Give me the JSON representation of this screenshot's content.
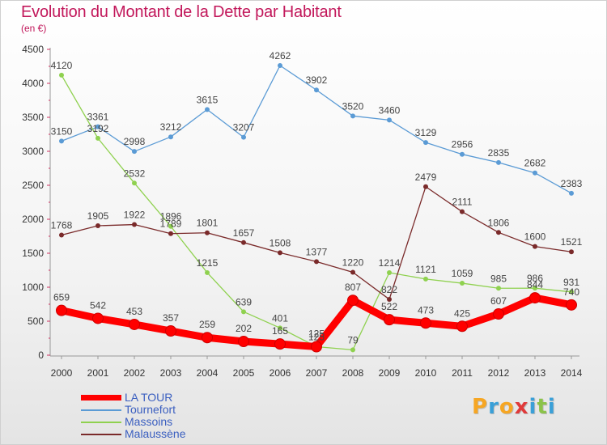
{
  "header": {
    "title": "Evolution du Montant de la Dette par Habitant",
    "subtitle": "(en €)"
  },
  "brand": {
    "letters": [
      "P",
      "r",
      "o",
      "x",
      "i",
      "t",
      "i"
    ],
    "colors": [
      "#f6a623",
      "#3aa0d8",
      "#f6a623",
      "#e03a3a",
      "#3aa0d8",
      "#8bc34a",
      "#3aa0d8"
    ]
  },
  "chart_data": {
    "type": "line",
    "title": "Evolution du Montant de la Dette par Habitant",
    "subtitle": "(en €)",
    "xlabel": "",
    "ylabel": "",
    "x": [
      "2000",
      "2001",
      "2002",
      "2003",
      "2004",
      "2005",
      "2006",
      "2007",
      "2008",
      "2009",
      "2010",
      "2011",
      "2012",
      "2013",
      "2014"
    ],
    "ylim": [
      0,
      4500
    ],
    "yticks": [
      0,
      500,
      1000,
      1500,
      2000,
      2500,
      3000,
      3500,
      4000,
      4500
    ],
    "grid": false,
    "legend": "bottom-left",
    "series": [
      {
        "name": "Tournefort",
        "color": "#5b9bd5",
        "values": [
          3150,
          3361,
          2998,
          3212,
          3615,
          3207,
          4262,
          3902,
          3520,
          3460,
          3129,
          2956,
          2835,
          2682,
          2383
        ]
      },
      {
        "name": "Massoins",
        "color": "#8fd14f",
        "values": [
          4120,
          3192,
          2532,
          1896,
          1215,
          639,
          401,
          125,
          79,
          1214,
          1121,
          1059,
          985,
          986,
          931
        ]
      },
      {
        "name": "Malaussène",
        "color": "#7a2a2a",
        "values": [
          1768,
          1905,
          1922,
          1789,
          1801,
          1657,
          1508,
          1377,
          1220,
          822,
          2479,
          2111,
          1806,
          1600,
          1521
        ]
      },
      {
        "name": "LA TOUR",
        "color": "#ff0000",
        "values": [
          659,
          542,
          453,
          357,
          259,
          202,
          165,
          125,
          807,
          522,
          473,
          425,
          607,
          844,
          740
        ]
      }
    ]
  },
  "legend_order": [
    "LA TOUR",
    "Tournefort",
    "Massoins",
    "Malaussène"
  ]
}
